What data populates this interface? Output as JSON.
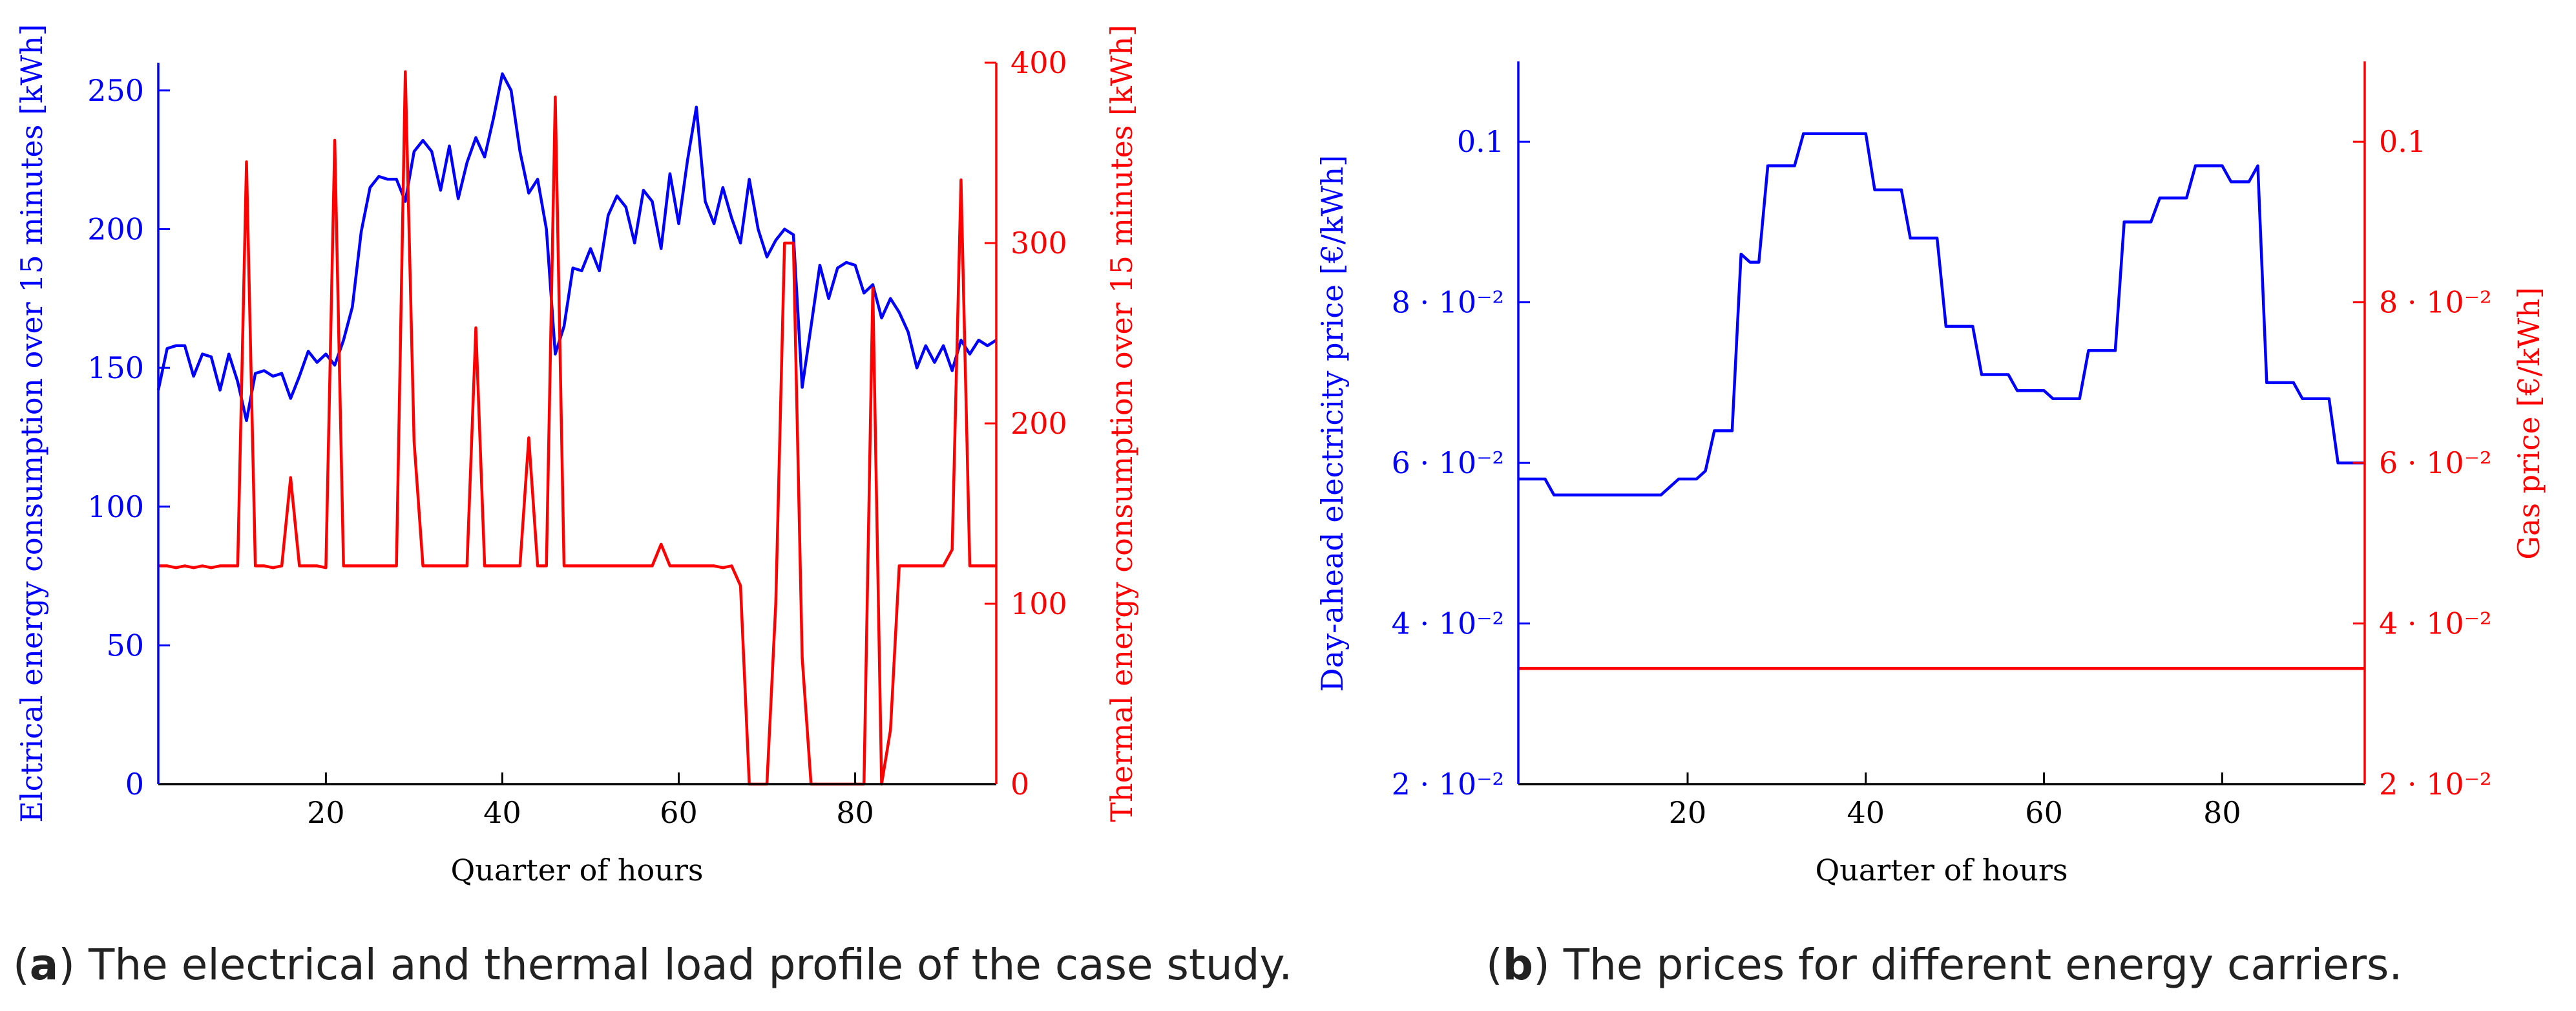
{
  "colors": {
    "left": "#0000ff",
    "right": "#ff0000",
    "axis": "#000000"
  },
  "chart_data": [
    {
      "type": "line",
      "caption_tag": "a",
      "caption_text": "The electrical and thermal load profile of the case study.",
      "xlabel": "Quarter of hours",
      "ylabel_left": "Elctrical energy consumption over 15 minutes [kWh]",
      "ylabel_right": "Thermal energy consumption over 15 minutes [kWh]",
      "xlim": [
        1,
        96
      ],
      "ylim_left": [
        0,
        260
      ],
      "ylim_right": [
        0,
        400
      ],
      "xticks": [
        20,
        40,
        60,
        80
      ],
      "xtick_labels": [
        "20",
        "40",
        "60",
        "80"
      ],
      "yticks_left": [
        0,
        50,
        100,
        150,
        200,
        250
      ],
      "ytick_labels_left": [
        "0",
        "50",
        "100",
        "150",
        "200",
        "250"
      ],
      "yticks_right": [
        0,
        100,
        200,
        300,
        400
      ],
      "ytick_labels_right": [
        "0",
        "100",
        "200",
        "300",
        "400"
      ],
      "series": [
        {
          "name": "Electrical energy consumption",
          "axis": "left",
          "x": [
            1,
            2,
            3,
            4,
            5,
            6,
            7,
            8,
            9,
            10,
            11,
            12,
            13,
            14,
            15,
            16,
            17,
            18,
            19,
            20,
            21,
            22,
            23,
            24,
            25,
            26,
            27,
            28,
            29,
            30,
            31,
            32,
            33,
            34,
            35,
            36,
            37,
            38,
            39,
            40,
            41,
            42,
            43,
            44,
            45,
            46,
            47,
            48,
            49,
            50,
            51,
            52,
            53,
            54,
            55,
            56,
            57,
            58,
            59,
            60,
            61,
            62,
            63,
            64,
            65,
            66,
            67,
            68,
            69,
            70,
            71,
            72,
            73,
            74,
            75,
            76,
            77,
            78,
            79,
            80,
            81,
            82,
            83,
            84,
            85,
            86,
            87,
            88,
            89,
            90,
            91,
            92,
            93,
            94,
            95,
            96
          ],
          "values": [
            142,
            157,
            158,
            158,
            147,
            155,
            154,
            142,
            155,
            145,
            131,
            148,
            149,
            147,
            148,
            139,
            147,
            156,
            152,
            155,
            151,
            160,
            172,
            199,
            215,
            219,
            218,
            218,
            210,
            228,
            232,
            228,
            214,
            230,
            211,
            224,
            233,
            226,
            240,
            256,
            250,
            228,
            213,
            218,
            200,
            155,
            165,
            186,
            185,
            193,
            185,
            205,
            212,
            208,
            195,
            214,
            210,
            193,
            220,
            202,
            225,
            244,
            210,
            202,
            215,
            204,
            195,
            218,
            200,
            190,
            196,
            200,
            198,
            143,
            165,
            187,
            175,
            186,
            188,
            187,
            177,
            180,
            168,
            175,
            170,
            163,
            150,
            158,
            152,
            158,
            149,
            160,
            155,
            160,
            158,
            160
          ]
        },
        {
          "name": "Thermal energy consumption",
          "axis": "right",
          "x": [
            1,
            2,
            3,
            4,
            5,
            6,
            7,
            8,
            9,
            10,
            11,
            12,
            13,
            14,
            15,
            16,
            17,
            18,
            19,
            20,
            21,
            22,
            23,
            24,
            25,
            26,
            27,
            28,
            29,
            30,
            31,
            32,
            33,
            34,
            35,
            36,
            37,
            38,
            39,
            40,
            41,
            42,
            43,
            44,
            45,
            46,
            47,
            48,
            49,
            50,
            51,
            52,
            53,
            54,
            55,
            56,
            57,
            58,
            59,
            60,
            61,
            62,
            63,
            64,
            65,
            66,
            67,
            68,
            69,
            70,
            71,
            72,
            73,
            74,
            75,
            76,
            77,
            78,
            79,
            80,
            81,
            82,
            83,
            84,
            85,
            86,
            87,
            88,
            89,
            90,
            91,
            92,
            93,
            94,
            95,
            96
          ],
          "values": [
            121,
            121,
            120,
            121,
            120,
            121,
            120,
            121,
            121,
            121,
            345,
            121,
            121,
            120,
            121,
            170,
            121,
            121,
            121,
            120,
            357,
            121,
            121,
            121,
            121,
            121,
            121,
            121,
            395,
            190,
            121,
            121,
            121,
            121,
            121,
            121,
            253,
            121,
            121,
            121,
            121,
            121,
            192,
            121,
            121,
            381,
            121,
            121,
            121,
            121,
            121,
            121,
            121,
            121,
            121,
            121,
            121,
            133,
            121,
            121,
            121,
            121,
            121,
            121,
            120,
            121,
            110,
            0,
            0,
            0,
            100,
            300,
            300,
            70,
            0,
            0,
            0,
            0,
            0,
            0,
            0,
            275,
            0,
            30,
            121,
            121,
            121,
            121,
            121,
            121,
            130,
            335,
            121,
            121,
            121,
            121
          ]
        }
      ]
    },
    {
      "type": "line",
      "caption_tag": "b",
      "caption_text": "The prices for different energy carriers.",
      "xlabel": "Quarter of hours",
      "ylabel_left": "Day-ahead electricity price [€/kWh]",
      "ylabel_right": "Gas price [€/kWh]",
      "xlim": [
        1,
        96
      ],
      "ylim_left": [
        0.02,
        0.11
      ],
      "ylim_right": [
        0.02,
        0.11
      ],
      "xticks": [
        20,
        40,
        60,
        80
      ],
      "xtick_labels": [
        "20",
        "40",
        "60",
        "80"
      ],
      "yticks_left": [
        0.02,
        0.04,
        0.06,
        0.08,
        0.1
      ],
      "ytick_labels_left": [
        "2 · 10⁻²",
        "4 · 10⁻²",
        "6 · 10⁻²",
        "8 · 10⁻²",
        "0.1"
      ],
      "yticks_right": [
        0.02,
        0.04,
        0.06,
        0.08,
        0.1
      ],
      "ytick_labels_right": [
        "2 · 10⁻²",
        "4 · 10⁻²",
        "6 · 10⁻²",
        "8 · 10⁻²",
        "0.1"
      ],
      "series": [
        {
          "name": "Day-ahead electricity price",
          "axis": "left",
          "x": [
            1,
            2,
            3,
            4,
            5,
            6,
            7,
            8,
            9,
            10,
            11,
            12,
            13,
            14,
            15,
            16,
            17,
            18,
            19,
            20,
            21,
            22,
            23,
            24,
            25,
            26,
            27,
            28,
            29,
            30,
            31,
            32,
            33,
            34,
            35,
            36,
            37,
            38,
            39,
            40,
            41,
            42,
            43,
            44,
            45,
            46,
            47,
            48,
            49,
            50,
            51,
            52,
            53,
            54,
            55,
            56,
            57,
            58,
            59,
            60,
            61,
            62,
            63,
            64,
            65,
            66,
            67,
            68,
            69,
            70,
            71,
            72,
            73,
            74,
            75,
            76,
            77,
            78,
            79,
            80,
            81,
            82,
            83,
            84,
            85,
            86,
            87,
            88,
            89,
            90,
            91,
            92,
            93,
            94,
            95,
            96
          ],
          "values": [
            0.058,
            0.058,
            0.058,
            0.058,
            0.056,
            0.056,
            0.056,
            0.056,
            0.056,
            0.056,
            0.056,
            0.056,
            0.056,
            0.056,
            0.056,
            0.056,
            0.056,
            0.057,
            0.058,
            0.058,
            0.058,
            0.059,
            0.064,
            0.064,
            0.064,
            0.086,
            0.085,
            0.085,
            0.097,
            0.097,
            0.097,
            0.097,
            0.101,
            0.101,
            0.101,
            0.101,
            0.101,
            0.101,
            0.101,
            0.101,
            0.094,
            0.094,
            0.094,
            0.094,
            0.088,
            0.088,
            0.088,
            0.088,
            0.077,
            0.077,
            0.077,
            0.077,
            0.071,
            0.071,
            0.071,
            0.071,
            0.069,
            0.069,
            0.069,
            0.069,
            0.068,
            0.068,
            0.068,
            0.068,
            0.074,
            0.074,
            0.074,
            0.074,
            0.09,
            0.09,
            0.09,
            0.09,
            0.093,
            0.093,
            0.093,
            0.093,
            0.097,
            0.097,
            0.097,
            0.097,
            0.095,
            0.095,
            0.095,
            0.097,
            0.07,
            0.07,
            0.07,
            0.07,
            0.068,
            0.068,
            0.068,
            0.068,
            0.06,
            0.06,
            0.06,
            0.06
          ]
        },
        {
          "name": "Gas price",
          "axis": "right",
          "x": [
            1,
            96
          ],
          "values": [
            0.0344,
            0.0344
          ]
        }
      ]
    }
  ]
}
